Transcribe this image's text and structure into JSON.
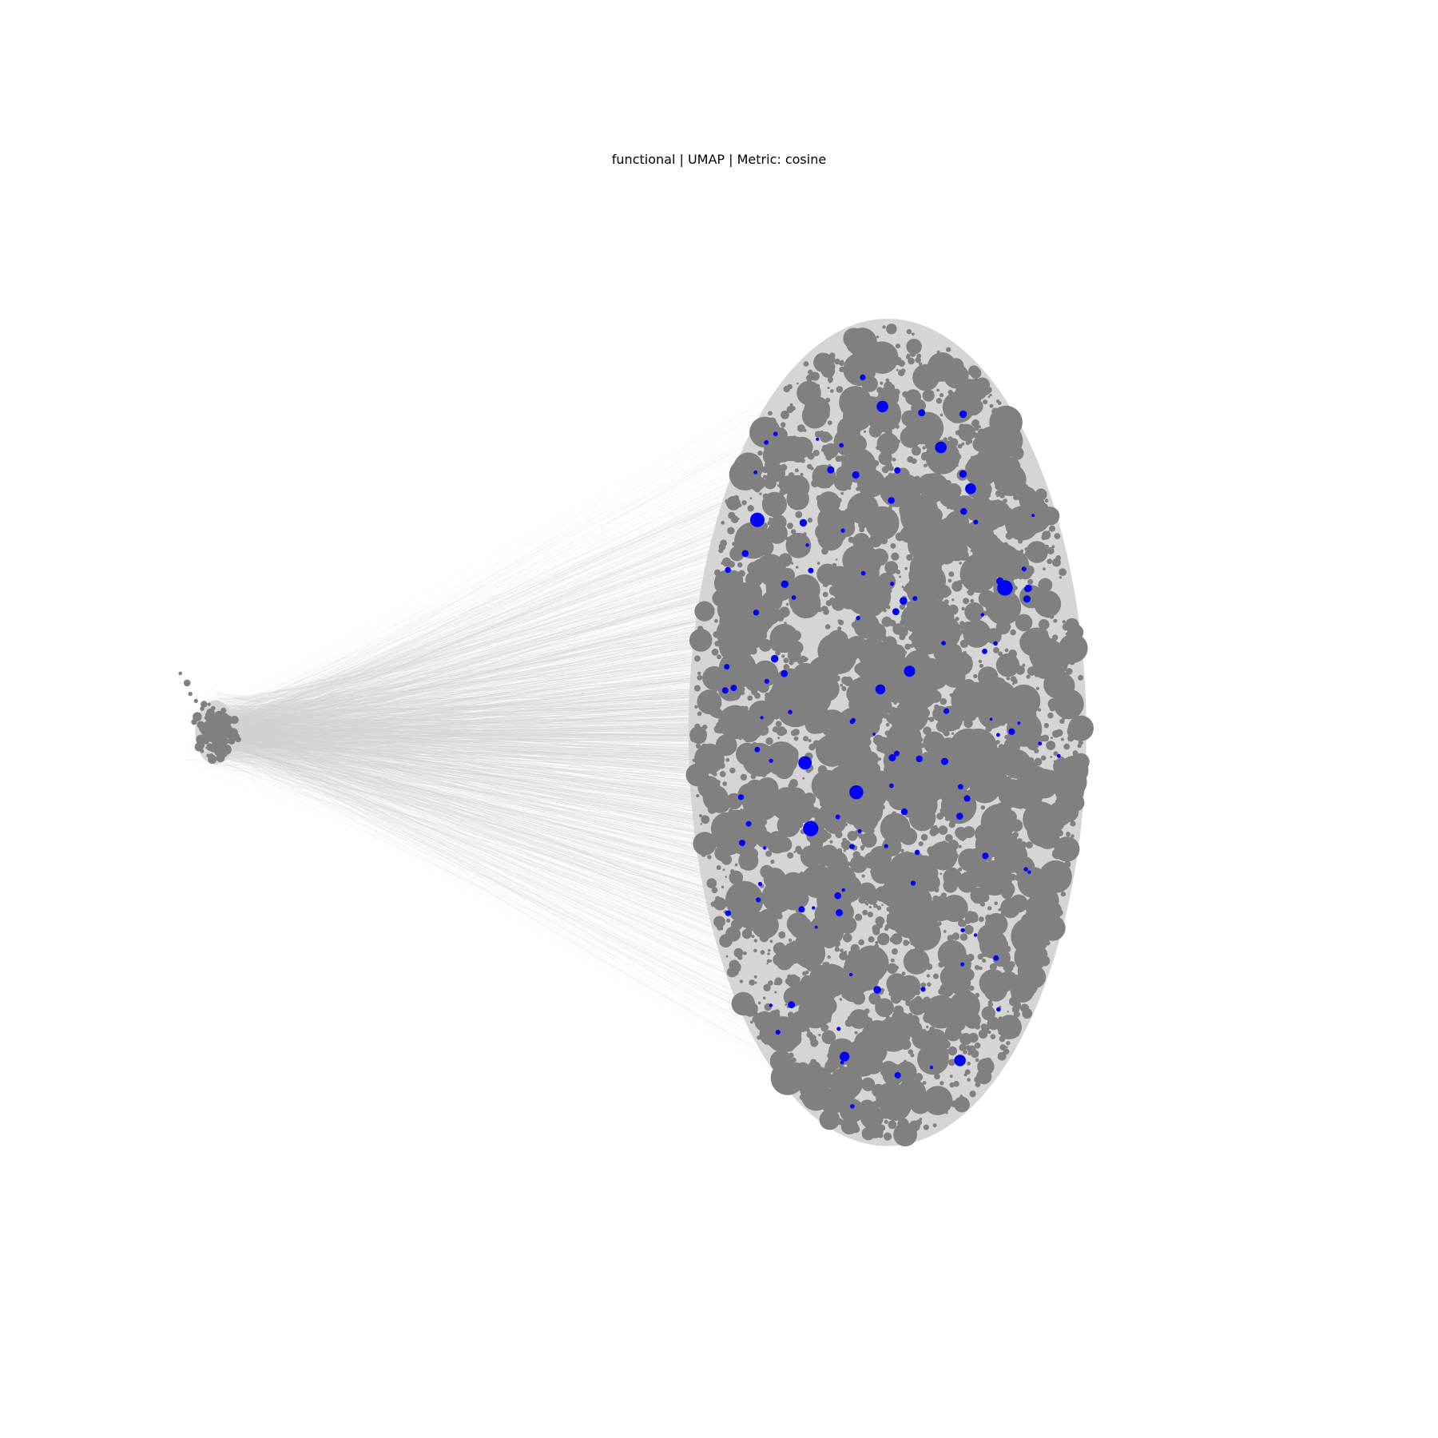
{
  "chart_data": {
    "type": "scatter",
    "subtype": "network-graph-embedding",
    "title": "functional | UMAP | Metric: cosine",
    "xlabel": "",
    "ylabel": "",
    "axes_visible": false,
    "grid": false,
    "colors": {
      "background": "#ffffff",
      "node_default": "#808080",
      "node_highlighted": "#0000ff",
      "edge": "#d3d3d3"
    },
    "xlim": [
      0,
      100
    ],
    "ylim": [
      0,
      100
    ],
    "clusters": [
      {
        "name": "small-cluster",
        "center": [
          3.2,
          51.5
        ],
        "spread": [
          1.4,
          2.6
        ],
        "approx_nodes": 120,
        "highlighted_nodes": 0
      },
      {
        "name": "main-cluster",
        "center": [
          63.5,
          51.5
        ],
        "spread": [
          17.5,
          39.5
        ],
        "approx_nodes": 9000,
        "highlighted_nodes": 120
      }
    ],
    "series": [
      {
        "name": "nodes",
        "color": "#808080"
      },
      {
        "name": "highlighted nodes",
        "color": "#0000ff"
      },
      {
        "name": "edges",
        "color": "#d3d3d3"
      }
    ]
  }
}
